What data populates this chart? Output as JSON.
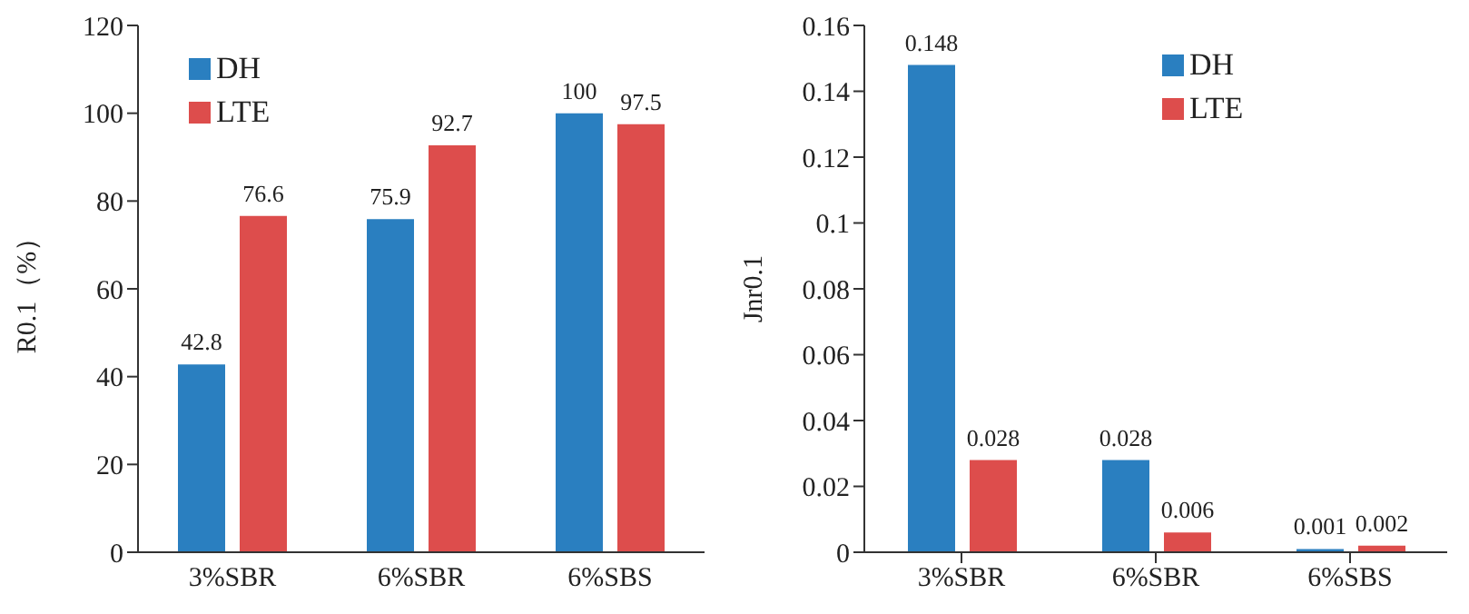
{
  "chart_data": [
    {
      "type": "bar",
      "ylabel": "R0.1（%）",
      "categories": [
        "3%SBR",
        "6%SBR",
        "6%SBS"
      ],
      "series": [
        {
          "name": "DH",
          "color": "#2a7fc0",
          "values": [
            42.8,
            75.9,
            100
          ]
        },
        {
          "name": "LTE",
          "color": "#dd4d4c",
          "values": [
            76.6,
            92.7,
            97.5
          ]
        }
      ],
      "ylim": [
        0,
        120
      ],
      "yticks": [
        0,
        20,
        40,
        60,
        80,
        100,
        120
      ],
      "data_labels": true,
      "legend": "top left"
    },
    {
      "type": "bar",
      "ylabel": "Jnr0.1",
      "categories": [
        "3%SBR",
        "6%SBR",
        "6%SBS"
      ],
      "series": [
        {
          "name": "DH",
          "color": "#2a7fc0",
          "values": [
            0.148,
            0.028,
            0.001
          ]
        },
        {
          "name": "LTE",
          "color": "#dd4d4c",
          "values": [
            0.028,
            0.006,
            0.002
          ]
        }
      ],
      "ylim": [
        0,
        0.16
      ],
      "yticks": [
        0,
        0.02,
        0.04,
        0.06,
        0.08,
        0.1,
        0.12,
        0.14,
        0.16
      ],
      "data_labels": true,
      "legend": "top right"
    }
  ]
}
